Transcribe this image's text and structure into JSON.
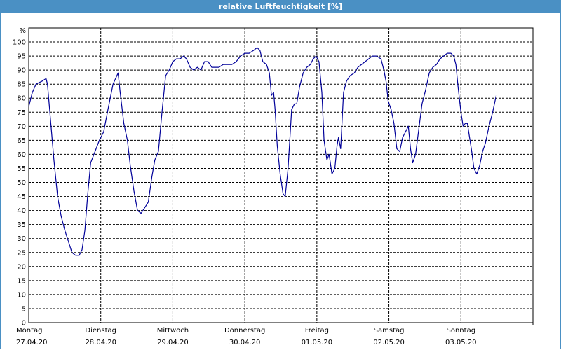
{
  "window": {
    "title": "relative Luftfeuchtigkeit [%]"
  },
  "chart_data": {
    "type": "line",
    "title": "relative Luftfeuchtigkeit [%]",
    "ylabel": "%",
    "ylim": [
      0,
      105
    ],
    "yticks": [
      0,
      5,
      10,
      15,
      20,
      25,
      30,
      35,
      40,
      45,
      50,
      55,
      60,
      65,
      70,
      75,
      80,
      85,
      90,
      95,
      100
    ],
    "xlim": [
      0,
      7
    ],
    "grid": true,
    "x_categories": [
      {
        "day": "Montag",
        "date": "27.04.20"
      },
      {
        "day": "Dienstag",
        "date": "28.04.20"
      },
      {
        "day": "Mittwoch",
        "date": "29.04.20"
      },
      {
        "day": "Donnerstag",
        "date": "30.04.20"
      },
      {
        "day": "Freitag",
        "date": "01.05.20"
      },
      {
        "day": "Samstag",
        "date": "02.05.20"
      },
      {
        "day": "Sonntag",
        "date": "03.05.20"
      }
    ],
    "color": "#000099",
    "series": [
      {
        "points": [
          [
            0.0,
            77
          ],
          [
            0.05,
            82
          ],
          [
            0.1,
            85
          ],
          [
            0.18,
            86
          ],
          [
            0.24,
            87
          ],
          [
            0.26,
            85
          ],
          [
            0.3,
            73
          ],
          [
            0.35,
            58
          ],
          [
            0.4,
            45
          ],
          [
            0.45,
            38
          ],
          [
            0.5,
            33
          ],
          [
            0.55,
            29
          ],
          [
            0.6,
            25
          ],
          [
            0.65,
            24
          ],
          [
            0.7,
            24
          ],
          [
            0.74,
            26
          ],
          [
            0.78,
            33
          ],
          [
            0.82,
            46
          ],
          [
            0.86,
            57
          ],
          [
            0.92,
            61
          ],
          [
            0.98,
            65
          ],
          [
            1.04,
            68
          ],
          [
            1.1,
            76
          ],
          [
            1.17,
            85
          ],
          [
            1.24,
            89
          ],
          [
            1.27,
            82
          ],
          [
            1.32,
            71
          ],
          [
            1.37,
            65
          ],
          [
            1.41,
            56
          ],
          [
            1.46,
            47
          ],
          [
            1.51,
            40
          ],
          [
            1.56,
            39
          ],
          [
            1.61,
            41
          ],
          [
            1.66,
            43
          ],
          [
            1.71,
            52
          ],
          [
            1.75,
            58
          ],
          [
            1.8,
            61
          ],
          [
            1.85,
            75
          ],
          [
            1.9,
            88
          ],
          [
            1.95,
            90
          ],
          [
            2.0,
            93
          ],
          [
            2.05,
            94
          ],
          [
            2.1,
            94
          ],
          [
            2.15,
            95
          ],
          [
            2.19,
            94
          ],
          [
            2.24,
            91
          ],
          [
            2.29,
            90
          ],
          [
            2.34,
            91
          ],
          [
            2.39,
            90
          ],
          [
            2.44,
            93
          ],
          [
            2.49,
            93
          ],
          [
            2.54,
            91
          ],
          [
            2.59,
            91
          ],
          [
            2.64,
            91
          ],
          [
            2.7,
            92
          ],
          [
            2.76,
            92
          ],
          [
            2.82,
            92
          ],
          [
            2.88,
            93
          ],
          [
            2.94,
            95
          ],
          [
            3.0,
            96
          ],
          [
            3.06,
            96
          ],
          [
            3.12,
            97
          ],
          [
            3.17,
            98
          ],
          [
            3.21,
            97
          ],
          [
            3.25,
            93
          ],
          [
            3.3,
            92
          ],
          [
            3.34,
            89
          ],
          [
            3.37,
            81
          ],
          [
            3.4,
            82
          ],
          [
            3.42,
            76
          ],
          [
            3.45,
            63
          ],
          [
            3.49,
            53
          ],
          [
            3.53,
            46
          ],
          [
            3.56,
            45
          ],
          [
            3.6,
            55
          ],
          [
            3.65,
            76
          ],
          [
            3.69,
            78
          ],
          [
            3.72,
            78
          ],
          [
            3.76,
            84
          ],
          [
            3.81,
            89
          ],
          [
            3.86,
            91
          ],
          [
            3.91,
            92
          ],
          [
            3.95,
            94
          ],
          [
            3.99,
            95
          ],
          [
            4.03,
            93
          ],
          [
            4.07,
            82
          ],
          [
            4.1,
            65
          ],
          [
            4.14,
            58
          ],
          [
            4.17,
            60
          ],
          [
            4.21,
            53
          ],
          [
            4.25,
            55
          ],
          [
            4.28,
            63
          ],
          [
            4.3,
            66
          ],
          [
            4.33,
            62
          ],
          [
            4.37,
            82
          ],
          [
            4.41,
            86
          ],
          [
            4.46,
            88
          ],
          [
            4.52,
            89
          ],
          [
            4.57,
            91
          ],
          [
            4.62,
            92
          ],
          [
            4.67,
            93
          ],
          [
            4.72,
            94
          ],
          [
            4.77,
            95
          ],
          [
            4.83,
            95
          ],
          [
            4.89,
            94
          ],
          [
            4.93,
            90
          ],
          [
            4.96,
            86
          ],
          [
            4.99,
            79
          ],
          [
            5.03,
            76
          ],
          [
            5.07,
            71
          ],
          [
            5.11,
            62
          ],
          [
            5.15,
            61
          ],
          [
            5.19,
            66
          ],
          [
            5.23,
            68
          ],
          [
            5.27,
            70
          ],
          [
            5.3,
            62
          ],
          [
            5.33,
            57
          ],
          [
            5.37,
            60
          ],
          [
            5.41,
            68
          ],
          [
            5.46,
            78
          ],
          [
            5.51,
            83
          ],
          [
            5.56,
            89
          ],
          [
            5.61,
            91
          ],
          [
            5.66,
            92
          ],
          [
            5.71,
            94
          ],
          [
            5.76,
            95
          ],
          [
            5.81,
            96
          ],
          [
            5.86,
            96
          ],
          [
            5.9,
            95
          ],
          [
            5.93,
            92
          ],
          [
            5.96,
            84
          ],
          [
            6.0,
            75
          ],
          [
            6.03,
            70
          ],
          [
            6.06,
            71
          ],
          [
            6.09,
            71
          ],
          [
            6.12,
            66
          ],
          [
            6.15,
            61
          ],
          [
            6.18,
            55
          ],
          [
            6.22,
            53
          ],
          [
            6.26,
            56
          ],
          [
            6.3,
            61
          ],
          [
            6.34,
            64
          ],
          [
            6.39,
            70
          ],
          [
            6.44,
            75
          ],
          [
            6.49,
            81
          ]
        ]
      }
    ]
  }
}
